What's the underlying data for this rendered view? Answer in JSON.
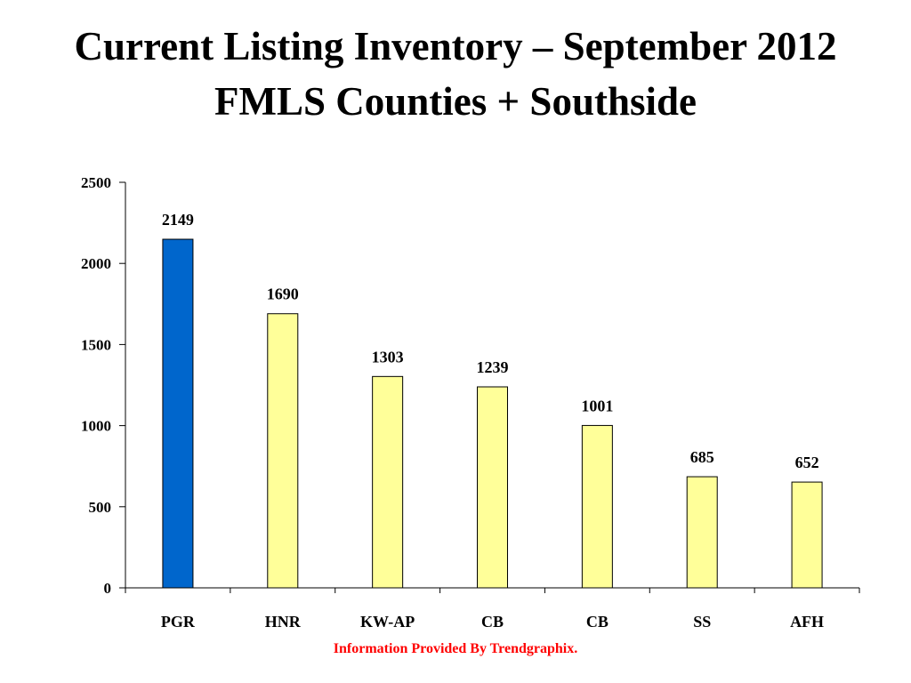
{
  "title_line1": "Current Listing Inventory – September 2012",
  "title_line2": "FMLS Counties + Southside",
  "footer": "Information Provided By Trendgraphix.",
  "chart_data": {
    "type": "bar",
    "categories": [
      "PGR",
      "HNR",
      "KW-AP",
      "CB",
      "CB",
      "SS",
      "AFH"
    ],
    "values": [
      2149,
      1690,
      1303,
      1239,
      1001,
      685,
      652
    ],
    "data_labels": [
      "2149",
      "1690",
      "1303",
      "1239",
      "1001",
      "685",
      "652"
    ],
    "ylim": [
      0,
      2500
    ],
    "yticks": [
      0,
      500,
      1000,
      1500,
      2000,
      2500
    ],
    "ytick_labels": [
      "0",
      "500",
      "1000",
      "1500",
      "2000",
      "2500"
    ],
    "grid": false,
    "legend": "none",
    "bar_colors": [
      "#0066cc",
      "#ffff99",
      "#ffff99",
      "#ffff99",
      "#ffff99",
      "#ffff99",
      "#ffff99"
    ],
    "bar_stroke": "#000000"
  }
}
